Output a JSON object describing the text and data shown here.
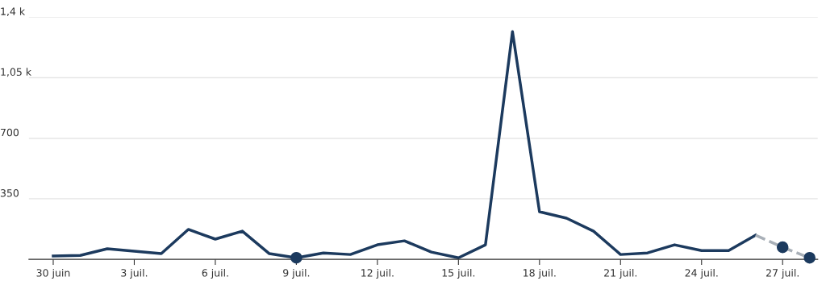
{
  "chart_data": {
    "type": "line",
    "categories": [
      "30 juin",
      null,
      null,
      "3 juil.",
      null,
      null,
      "6 juil.",
      null,
      null,
      "9 juil.",
      null,
      null,
      "12 juil.",
      null,
      null,
      "15 juil.",
      null,
      null,
      "18 juil.",
      null,
      null,
      "21 juil.",
      null,
      null,
      "24 juil.",
      null,
      null,
      "27 juil.",
      null
    ],
    "series": [
      {
        "color": "#1c3a5e",
        "line_style": "solid",
        "marker": "none",
        "values": [
          19,
          23,
          61,
          47,
          33,
          173,
          117,
          163,
          33,
          9,
          37,
          28,
          84,
          107,
          42,
          9,
          84,
          1316,
          275,
          238,
          163,
          28,
          37,
          84,
          51,
          51,
          140,
          null,
          null
        ]
      },
      {
        "color": "#a9b0b8",
        "line_style": "dashed",
        "marker": "none",
        "values": [
          null,
          null,
          null,
          null,
          null,
          null,
          null,
          null,
          null,
          null,
          null,
          null,
          null,
          null,
          null,
          null,
          null,
          null,
          null,
          null,
          null,
          null,
          null,
          null,
          null,
          null,
          140,
          70,
          9
        ]
      },
      {
        "type": "scatter",
        "color": "#1c3a5e",
        "marker": "circle",
        "values": [
          null,
          null,
          null,
          null,
          null,
          null,
          null,
          null,
          null,
          9,
          null,
          null,
          null,
          null,
          null,
          null,
          null,
          null,
          null,
          null,
          null,
          null,
          null,
          null,
          null,
          null,
          null,
          70,
          9
        ]
      }
    ],
    "ylim": [
      0,
      1400
    ],
    "yticks": [
      {
        "value": 0,
        "label": null
      },
      350,
      700,
      {
        "value": 1050,
        "label": "1,05 k"
      },
      {
        "value": 1400,
        "label": "1,4 k"
      }
    ],
    "grid": "y",
    "legend": false
  }
}
